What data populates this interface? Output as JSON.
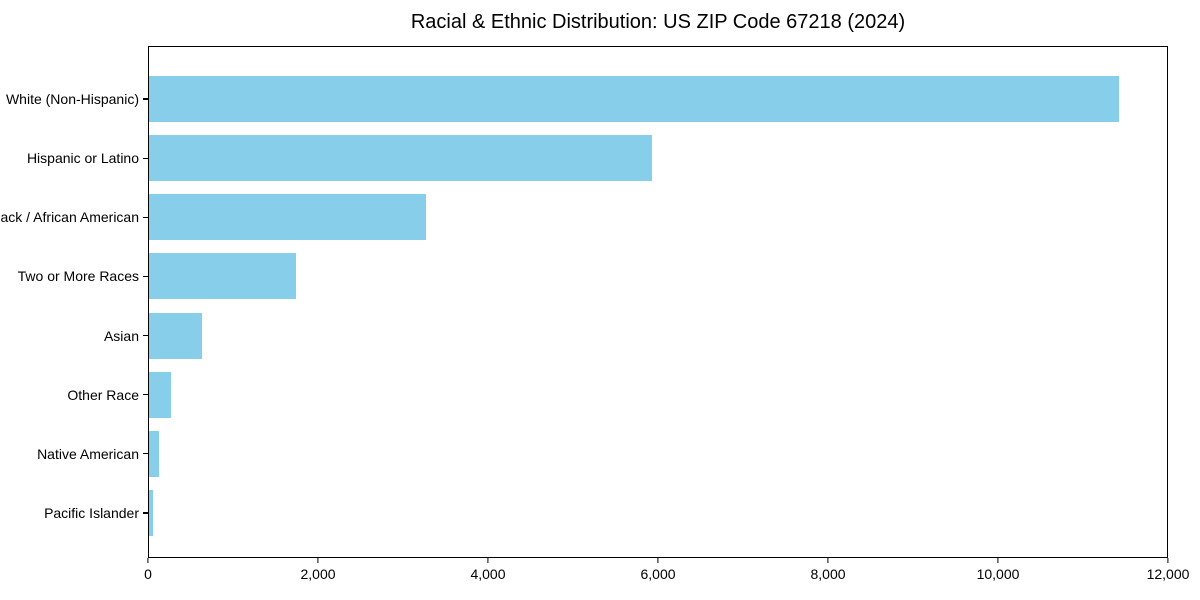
{
  "chart_data": {
    "type": "bar",
    "orientation": "horizontal",
    "title": "Racial & Ethnic Distribution: US ZIP Code 67218 (2024)",
    "categories": [
      "White (Non-Hispanic)",
      "Hispanic or Latino",
      "Black / African American",
      "Two or More Races",
      "Asian",
      "Other Race",
      "Native American",
      "Pacific Islander"
    ],
    "values": [
      11430,
      5930,
      3260,
      1730,
      630,
      260,
      120,
      45
    ],
    "xlabel": "",
    "ylabel": "",
    "xlim": [
      0,
      12000
    ],
    "x_ticks": [
      {
        "value": 0,
        "label": "0"
      },
      {
        "value": 2000,
        "label": "2,000"
      },
      {
        "value": 4000,
        "label": "4,000"
      },
      {
        "value": 6000,
        "label": "6,000"
      },
      {
        "value": 8000,
        "label": "8,000"
      },
      {
        "value": 10000,
        "label": "10,000"
      },
      {
        "value": 12000,
        "label": "12,000"
      }
    ],
    "grid": false,
    "legend": "none",
    "bar_color": "#87CEEB",
    "axis_color": "#000000",
    "text_color": "#000000",
    "background_color": "#FFFFFF"
  }
}
